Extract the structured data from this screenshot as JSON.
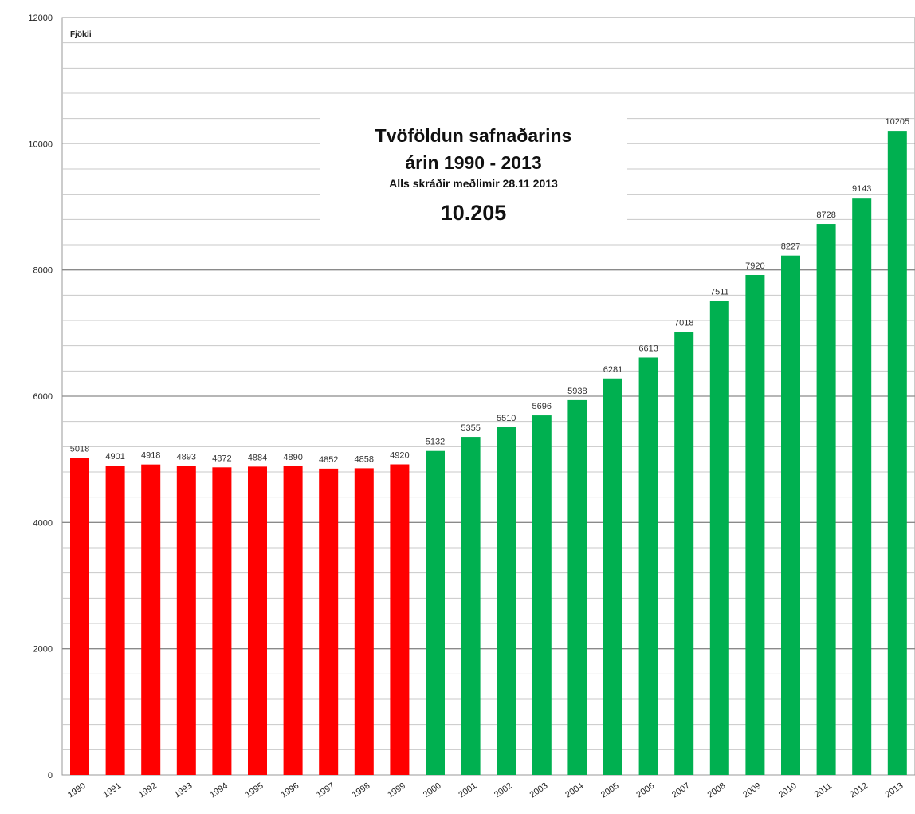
{
  "chart_data": {
    "type": "bar",
    "ylabel": "Fjöldi",
    "title_lines": [
      "Tvöföldun safnaðarins",
      "árin 1990 - 2013",
      "Alls skráðir meðlimir 28.11 2013",
      "10.205"
    ],
    "ylim": [
      0,
      12000
    ],
    "yticks": [
      0,
      2000,
      4000,
      6000,
      8000,
      10000,
      12000
    ],
    "grid": true,
    "categories": [
      "1990",
      "1991",
      "1992",
      "1993",
      "1994",
      "1995",
      "1996",
      "1997",
      "1998",
      "1999",
      "2000",
      "2001",
      "2002",
      "2003",
      "2004",
      "2005",
      "2006",
      "2007",
      "2008",
      "2009",
      "2010",
      "2011",
      "2012",
      "2013"
    ],
    "values": [
      5018,
      4901,
      4918,
      4893,
      4872,
      4884,
      4890,
      4852,
      4858,
      4920,
      5132,
      5355,
      5510,
      5696,
      5938,
      6281,
      6613,
      7018,
      7511,
      7920,
      8227,
      8728,
      9143,
      10205
    ],
    "bar_colors": {
      "1990-1999": "#ff0000",
      "2000-2013": "#00b050"
    }
  }
}
